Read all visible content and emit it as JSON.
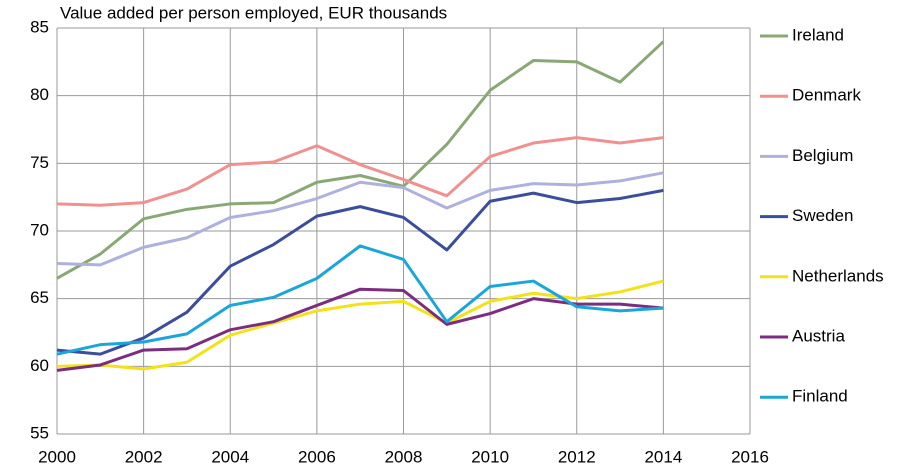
{
  "chart_data": {
    "type": "line",
    "title": "Value added per person employed, EUR thousands",
    "x": [
      2000,
      2001,
      2002,
      2003,
      2004,
      2005,
      2006,
      2007,
      2008,
      2009,
      2010,
      2011,
      2012,
      2013,
      2014
    ],
    "xlim": [
      2000,
      2016
    ],
    "xticks": [
      2000,
      2002,
      2004,
      2006,
      2008,
      2010,
      2012,
      2014,
      2016
    ],
    "ylim": [
      55,
      85
    ],
    "yticks": [
      55,
      60,
      65,
      70,
      75,
      80,
      85
    ],
    "grid": true,
    "legend": "right",
    "series": [
      {
        "name": "Ireland",
        "color": "#8aa876",
        "values": [
          66.5,
          68.3,
          70.9,
          71.6,
          72.0,
          72.1,
          73.6,
          74.1,
          73.3,
          76.4,
          80.4,
          82.6,
          82.5,
          81.0,
          84.0
        ]
      },
      {
        "name": "Denmark",
        "color": "#f0908f",
        "values": [
          72.0,
          71.9,
          72.1,
          73.1,
          74.9,
          75.1,
          76.3,
          74.9,
          73.8,
          72.6,
          75.5,
          76.5,
          76.9,
          76.5,
          76.9
        ]
      },
      {
        "name": "Belgium",
        "color": "#aeb0dd",
        "values": [
          67.6,
          67.5,
          68.8,
          69.5,
          71.0,
          71.5,
          72.4,
          73.6,
          73.2,
          71.7,
          73.0,
          73.5,
          73.4,
          73.7,
          74.3
        ]
      },
      {
        "name": "Sweden",
        "color": "#3b4d9b",
        "values": [
          61.2,
          60.9,
          62.1,
          64.0,
          67.4,
          69.0,
          71.1,
          71.8,
          71.0,
          68.6,
          72.2,
          72.8,
          72.1,
          72.4,
          73.0
        ]
      },
      {
        "name": "Netherlands",
        "color": "#f2e21a",
        "values": [
          60.0,
          60.1,
          59.8,
          60.3,
          62.3,
          63.2,
          64.1,
          64.6,
          64.8,
          63.2,
          64.8,
          65.4,
          65.0,
          65.5,
          66.3
        ]
      },
      {
        "name": "Austria",
        "color": "#7b2d7f",
        "values": [
          59.7,
          60.1,
          61.2,
          61.3,
          62.7,
          63.3,
          64.5,
          65.7,
          65.6,
          63.1,
          63.9,
          65.0,
          64.6,
          64.6,
          64.3
        ]
      },
      {
        "name": "Finland",
        "color": "#1aa6d9",
        "values": [
          60.9,
          61.6,
          61.8,
          62.4,
          64.5,
          65.1,
          66.5,
          68.9,
          67.9,
          63.3,
          65.9,
          66.3,
          64.4,
          64.1,
          64.3
        ]
      }
    ]
  }
}
